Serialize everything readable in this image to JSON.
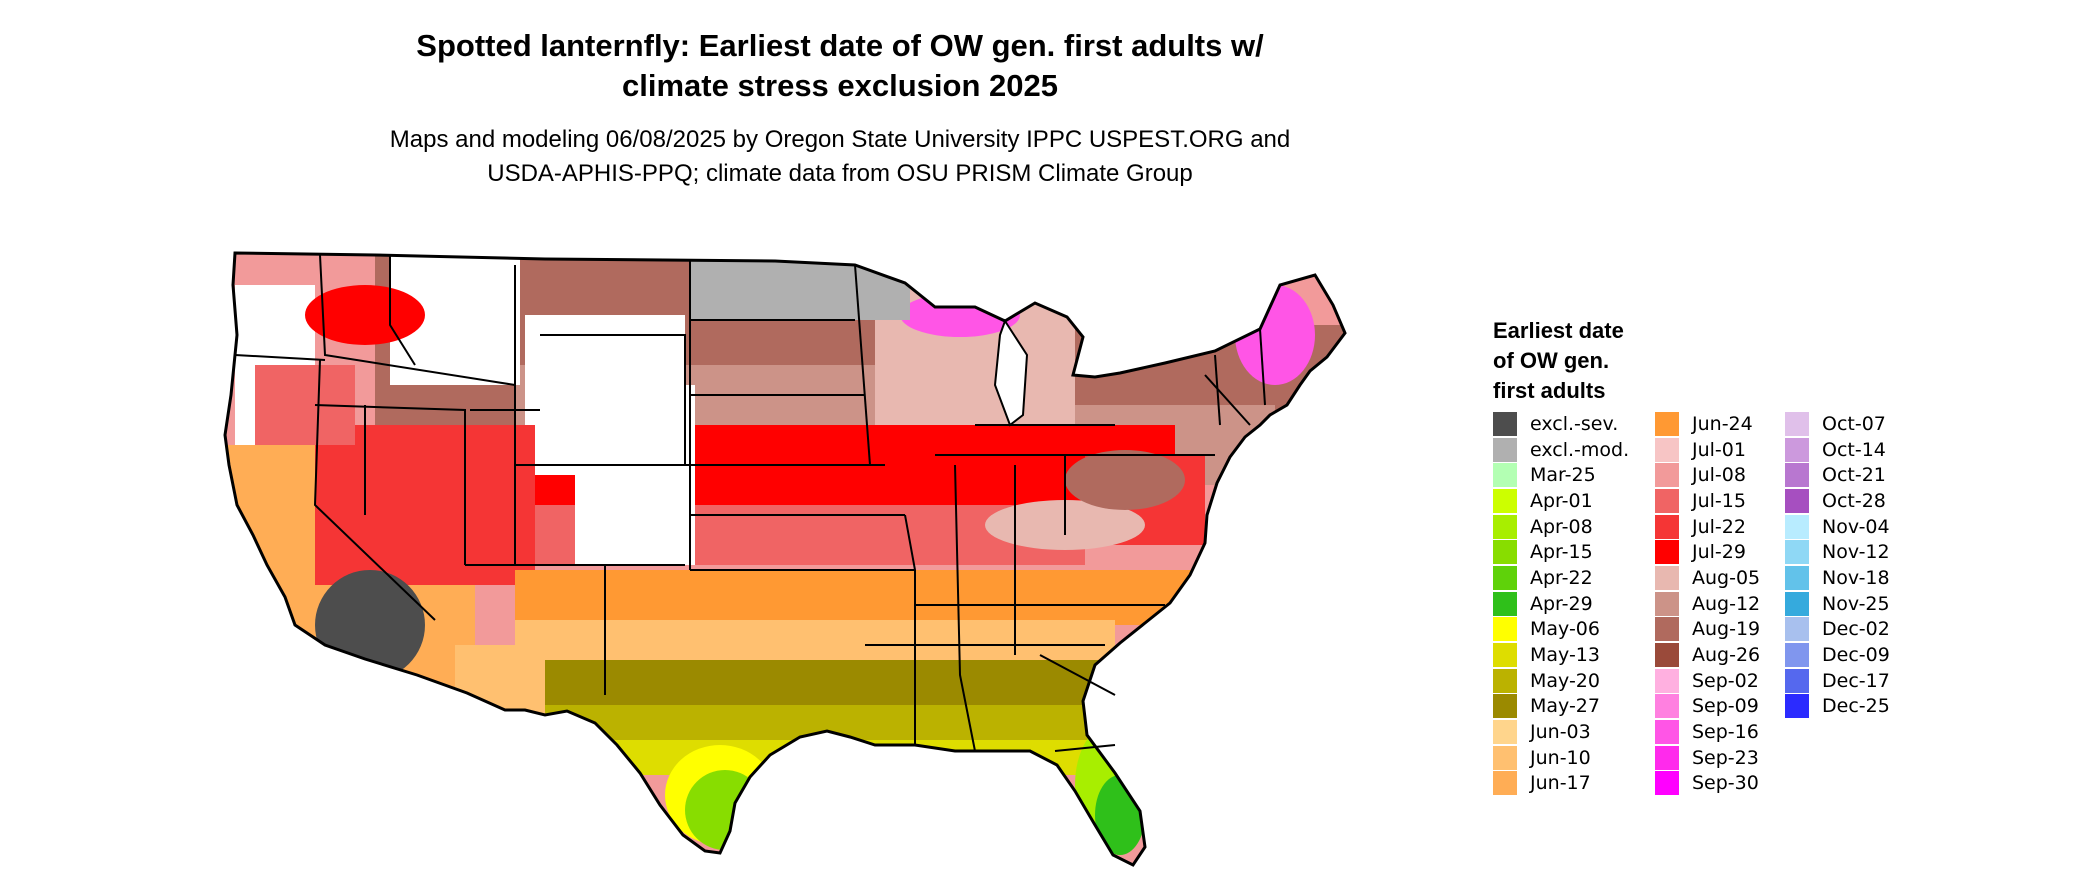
{
  "map": {
    "title_line1": "Spotted lanternfly: Earliest date of OW gen. first adults w/",
    "title_line2": "climate stress exclusion 2025",
    "subtitle_line1": "Maps and modeling 06/08/2025 by Oregon State University IPPC USPEST.ORG and",
    "subtitle_line2": "USDA-APHIS-PPQ; climate data from OSU PRISM Climate Group",
    "region": "Contiguous United States"
  },
  "legend": {
    "title_lines": [
      "Earliest date",
      "of OW gen.",
      "first adults"
    ],
    "columns": [
      [
        {
          "label": "excl.-sev.",
          "color": "#4d4d4d"
        },
        {
          "label": "excl.-mod.",
          "color": "#b0b0b0"
        },
        {
          "label": "Mar-25",
          "color": "#b3ffb3"
        },
        {
          "label": "Apr-01",
          "color": "#ccff00"
        },
        {
          "label": "Apr-08",
          "color": "#a8ee00"
        },
        {
          "label": "Apr-15",
          "color": "#88dd00"
        },
        {
          "label": "Apr-22",
          "color": "#5fd20a"
        },
        {
          "label": "Apr-29",
          "color": "#2fc01a"
        },
        {
          "label": "May-06",
          "color": "#ffff00"
        },
        {
          "label": "May-13",
          "color": "#dedd00"
        },
        {
          "label": "May-20",
          "color": "#bbb200"
        },
        {
          "label": "May-27",
          "color": "#9b8a00"
        },
        {
          "label": "Jun-03",
          "color": "#ffd58c"
        },
        {
          "label": "Jun-10",
          "color": "#ffc070"
        },
        {
          "label": "Jun-17",
          "color": "#ffad55"
        }
      ],
      [
        {
          "label": "Jun-24",
          "color": "#ff9933"
        },
        {
          "label": "Jul-01",
          "color": "#f7c5c5"
        },
        {
          "label": "Jul-08",
          "color": "#f29a9a"
        },
        {
          "label": "Jul-15",
          "color": "#f06464"
        },
        {
          "label": "Jul-22",
          "color": "#f53535"
        },
        {
          "label": "Jul-29",
          "color": "#ff0000"
        },
        {
          "label": "Aug-05",
          "color": "#e8b8b0"
        },
        {
          "label": "Aug-12",
          "color": "#cc9388"
        },
        {
          "label": "Aug-19",
          "color": "#b06a5e"
        },
        {
          "label": "Aug-26",
          "color": "#9a4a3a"
        },
        {
          "label": "Sep-02",
          "color": "#ffb0e0"
        },
        {
          "label": "Sep-09",
          "color": "#ff80e0"
        },
        {
          "label": "Sep-16",
          "color": "#ff55e6"
        },
        {
          "label": "Sep-23",
          "color": "#ff2aec"
        },
        {
          "label": "Sep-30",
          "color": "#ff00ff"
        }
      ],
      [
        {
          "label": "Oct-07",
          "color": "#e0c0ea"
        },
        {
          "label": "Oct-14",
          "color": "#cc99dd"
        },
        {
          "label": "Oct-21",
          "color": "#b877d0"
        },
        {
          "label": "Oct-28",
          "color": "#a64fc0"
        },
        {
          "label": "Nov-04",
          "color": "#b8ecff"
        },
        {
          "label": "Nov-12",
          "color": "#8fd8f5"
        },
        {
          "label": "Nov-18",
          "color": "#62c2ea"
        },
        {
          "label": "Nov-25",
          "color": "#35aadd"
        },
        {
          "label": "Dec-02",
          "color": "#a8c0ee"
        },
        {
          "label": "Dec-09",
          "color": "#8096ee"
        },
        {
          "label": "Dec-17",
          "color": "#5568ee"
        },
        {
          "label": "Dec-25",
          "color": "#2b2bff"
        }
      ]
    ]
  }
}
